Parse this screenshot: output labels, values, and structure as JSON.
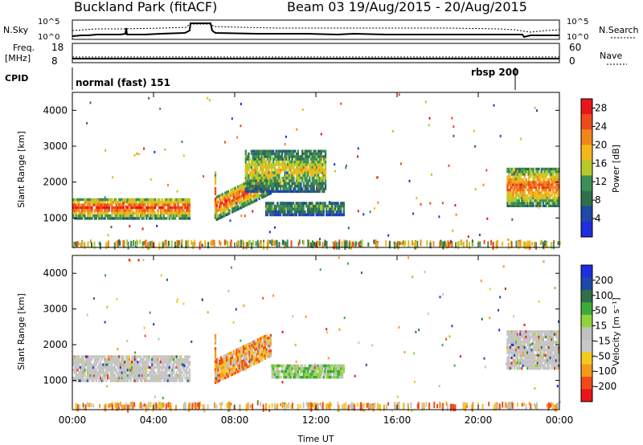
{
  "header": {
    "site": "Buckland Park (fitACF)",
    "beam_date": "Beam 03  19/Aug/2015 - 20/Aug/2015"
  },
  "top_panels": {
    "nsky_label": "N.Sky",
    "nsearch_label": "N.Search",
    "nsky_ticks": [
      "10^5",
      "10^0"
    ],
    "nsearch_ticks": [
      "10^5",
      "10^0"
    ],
    "freq_label_1": "Freq.",
    "freq_label_2": "[MHz]",
    "freq_ticks": [
      "18",
      "8"
    ],
    "nave_ticks": [
      "60",
      "0"
    ],
    "nave_label": "Nave",
    "cpid_label": "CPID",
    "cpid_mode_1": "normal (fast) 151",
    "cpid_mode_2": "rbsp 200"
  },
  "colors": {
    "power_scale": [
      "#1e2de0",
      "#1d4aa8",
      "#2f6f4a",
      "#3c8f55",
      "#b7c92a",
      "#f5b81a",
      "#f3861a",
      "#ef4a1a",
      "#e8161a"
    ],
    "velocity_scale": [
      "#e8161a",
      "#ef4a1a",
      "#f59a1c",
      "#f5c81e",
      "#c8c8c8",
      "#c0c0c0",
      "#8fd43a",
      "#3cab3a",
      "#2f6f4a",
      "#1d4aa8",
      "#1e2de0"
    ],
    "ground_scatter": "#c4c4c4"
  },
  "chart_data": [
    {
      "type": "heatmap",
      "name": "power",
      "ylabel": "Slant Range [km]",
      "xlabel": "Time UT",
      "x_ticks": [
        "00:00",
        "04:00",
        "08:00",
        "12:00",
        "16:00",
        "20:00",
        "00:00"
      ],
      "x_range_hours": [
        0,
        24
      ],
      "y_ticks": [
        1000,
        2000,
        3000,
        4000
      ],
      "ylim": [
        180,
        4500
      ],
      "colorbar_label": "Power [dB]",
      "colorbar_ticks": [
        "28",
        "24",
        "20",
        "16",
        "12",
        "8",
        "4"
      ],
      "colorbar_range": [
        0,
        30
      ],
      "echo_regions": [
        {
          "t0": 0.0,
          "t1": 5.8,
          "r0": 950,
          "r1": 1550,
          "peak_db": 28
        },
        {
          "t0": 7.0,
          "t1": 9.8,
          "r0": 900,
          "r1": 2300,
          "peak_db": 28
        },
        {
          "t0": 8.5,
          "t1": 12.5,
          "r0": 1700,
          "r1": 2900,
          "peak_db": 18
        },
        {
          "t0": 9.5,
          "t1": 13.4,
          "r0": 1050,
          "r1": 1450,
          "peak_db": 12
        },
        {
          "t0": 21.4,
          "t1": 24.0,
          "r0": 1300,
          "r1": 2400,
          "peak_db": 26
        }
      ]
    },
    {
      "type": "heatmap",
      "name": "velocity",
      "ylabel": "Slant Range [km]",
      "xlabel": "Time UT",
      "x_ticks": [
        "00:00",
        "04:00",
        "08:00",
        "12:00",
        "16:00",
        "20:00",
        "00:00"
      ],
      "x_range_hours": [
        0,
        24
      ],
      "y_ticks": [
        1000,
        2000,
        3000,
        4000
      ],
      "ylim": [
        180,
        4500
      ],
      "colorbar_label": "Velocity [m s⁻¹]",
      "colorbar_ticks": [
        "200",
        "100",
        "50",
        "15",
        "-15",
        "-50",
        "-100",
        "-200"
      ],
      "colorbar_range": [
        -250,
        250
      ],
      "echo_regions": [
        {
          "t0": 0.0,
          "t1": 5.8,
          "r0": 950,
          "r1": 1700,
          "kind": "ground_scatter"
        },
        {
          "t0": 7.0,
          "t1": 9.8,
          "r0": 900,
          "r1": 2300,
          "kind": "negative"
        },
        {
          "t0": 9.8,
          "t1": 13.4,
          "r0": 1050,
          "r1": 1450,
          "kind": "positive_low"
        },
        {
          "t0": 21.4,
          "t1": 24.0,
          "r0": 1300,
          "r1": 2400,
          "kind": "ground_scatter"
        }
      ]
    }
  ]
}
